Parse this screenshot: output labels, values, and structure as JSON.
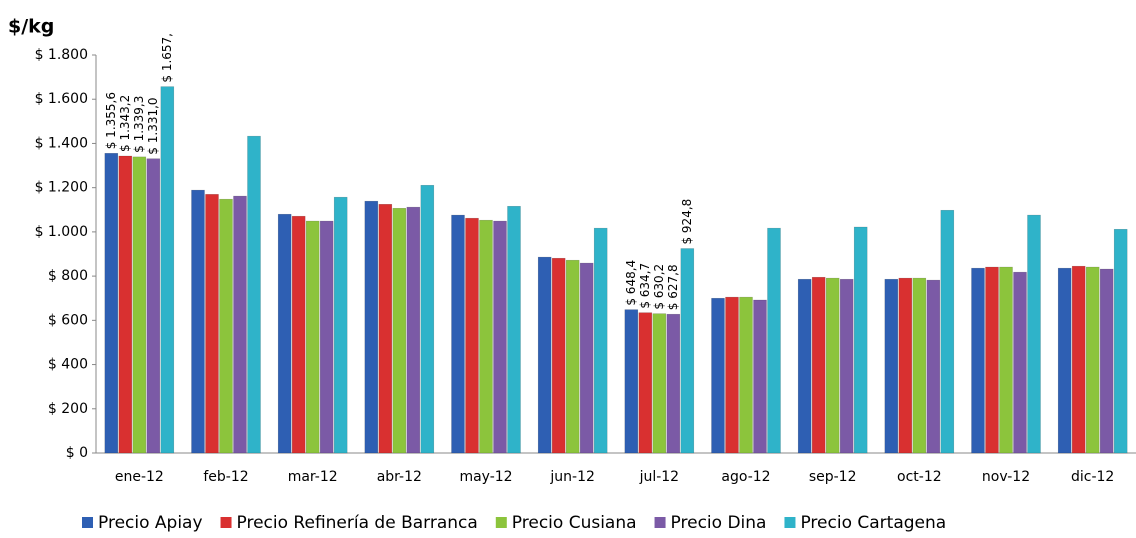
{
  "chart_data": {
    "type": "bar",
    "y_label": "$/kg",
    "categories": [
      "ene-12",
      "feb-12",
      "mar-12",
      "abr-12",
      "may-12",
      "jun-12",
      "jul-12",
      "ago-12",
      "sep-12",
      "oct-12",
      "nov-12",
      "dic-12"
    ],
    "series": [
      {
        "name": "Precio Apiay",
        "color": "#2e5fb3",
        "values": [
          1355.6,
          1189,
          1080,
          1139,
          1076,
          886,
          648.4,
          700,
          786,
          786,
          836,
          836
        ],
        "value_labels": [
          "$ 1.355,6",
          null,
          null,
          null,
          null,
          null,
          "$ 648,4",
          null,
          null,
          null,
          null,
          null
        ]
      },
      {
        "name": "Precio Refinería de Barranca",
        "color": "#d93030",
        "values": [
          1343.2,
          1170,
          1071,
          1125,
          1062,
          881,
          634.7,
          705,
          795,
          791,
          841,
          845
        ],
        "value_labels": [
          "$ 1.343,2",
          null,
          null,
          null,
          null,
          null,
          "$ 634,7",
          null,
          null,
          null,
          null,
          null
        ]
      },
      {
        "name": "Precio Cusiana",
        "color": "#8cc43c",
        "values": [
          1339.3,
          1148,
          1049,
          1107,
          1053,
          872,
          630.2,
          705,
          791,
          791,
          841,
          841
        ],
        "value_labels": [
          "$ 1.339,3",
          null,
          null,
          null,
          null,
          null,
          "$ 630,2",
          null,
          null,
          null,
          null,
          null
        ]
      },
      {
        "name": "Precio Dina",
        "color": "#7b5aa6",
        "values": [
          1331.0,
          1162,
          1049,
          1112,
          1049,
          859,
          627.8,
          692,
          786,
          782,
          818,
          832
        ],
        "value_labels": [
          "$ 1.331,0",
          null,
          null,
          null,
          null,
          null,
          "$ 627,8",
          null,
          null,
          null,
          null,
          null
        ]
      },
      {
        "name": "Precio Cartagena",
        "color": "#2fb3c9",
        "values": [
          1657,
          1433,
          1157,
          1211,
          1116,
          1017,
          924.8,
          1017,
          1022,
          1098,
          1076,
          1012
        ],
        "value_labels": [
          "$ 1.657,",
          null,
          null,
          null,
          null,
          null,
          "$ 924,8",
          null,
          null,
          null,
          null,
          null
        ]
      }
    ],
    "ylim": [
      0,
      1800
    ],
    "yticks": [
      {
        "value": 0,
        "label": "$ 0"
      },
      {
        "value": 200,
        "label": "$ 200"
      },
      {
        "value": 400,
        "label": "$ 400"
      },
      {
        "value": 600,
        "label": "$ 600"
      },
      {
        "value": 800,
        "label": "$ 800"
      },
      {
        "value": 1000,
        "label": "$ 1.000"
      },
      {
        "value": 1200,
        "label": "$ 1.200"
      },
      {
        "value": 1400,
        "label": "$ 1.400"
      },
      {
        "value": 1600,
        "label": "$ 1.600"
      },
      {
        "value": 1800,
        "label": "$ 1.800"
      }
    ],
    "grid": false,
    "legend": "bottom"
  }
}
